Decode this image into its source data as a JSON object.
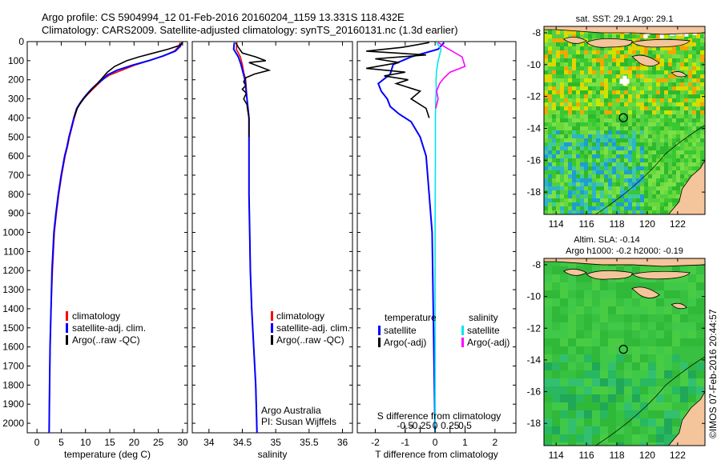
{
  "header": {
    "line1": "Argo profile: CS 5904994_12 01-Feb-2016 20160204_1159 13.331S 118.432E",
    "line2": "Climatology: CARS2009. Satellite-adjusted climatology: synTS_20160131.nc (1.3d earlier)"
  },
  "colors": {
    "climatology": "#ff0000",
    "satellite": "#0000ff",
    "argo": "#000000",
    "sat_salinity": "#00e5ee",
    "argo_salinity_adj": "#ff00ff"
  },
  "chart_data": [
    {
      "type": "line",
      "name": "temperature-profile",
      "xlabel": "temperature (deg C)",
      "xlim": [
        -2,
        31
      ],
      "ylim": [
        0,
        2050
      ],
      "y_inverted": true,
      "xticks": [
        0,
        5,
        10,
        15,
        20,
        25,
        30
      ],
      "xticklabels": [
        "0",
        "5",
        "10",
        "15",
        "20",
        "25",
        "30"
      ],
      "yticks": [
        0,
        100,
        200,
        300,
        400,
        500,
        600,
        700,
        800,
        900,
        1000,
        1100,
        1200,
        1300,
        1400,
        1500,
        1600,
        1700,
        1800,
        1900,
        2000
      ],
      "yticklabels": [
        "0",
        "100",
        "200",
        "300",
        "400",
        "500",
        "600",
        "700",
        "800",
        "900",
        "1000",
        "1100",
        "1200",
        "1300",
        "1400",
        "1500",
        "1600",
        "1700",
        "1800",
        "1900",
        "2000"
      ],
      "legend": [
        "climatology",
        "satellite-adj. clim.",
        "Argo(..raw -QC)"
      ],
      "series": [
        {
          "name": "climatology",
          "color": "#ff0000",
          "x": [
            29.5,
            29.2,
            28.3,
            26,
            23,
            20,
            17.5,
            15,
            13.5,
            12.5,
            11.5,
            10.5,
            9.6,
            8.9,
            8.3,
            7.7,
            7.2,
            6.7,
            6.3,
            5.8,
            5.1,
            4.5,
            4.0,
            3.6,
            3.2,
            2.9,
            2.7,
            2.6,
            2.5
          ],
          "y": [
            5,
            25,
            50,
            75,
            100,
            125,
            150,
            175,
            200,
            225,
            250,
            275,
            300,
            325,
            350,
            400,
            450,
            500,
            550,
            600,
            700,
            800,
            900,
            1000,
            1200,
            1400,
            1600,
            1800,
            2050
          ]
        },
        {
          "name": "satellite-adj. clim.",
          "color": "#0000ff",
          "x": [
            29.9,
            29.5,
            28.5,
            26,
            23,
            19.5,
            16.5,
            14.5,
            13.5,
            12.2,
            11.2,
            10.3,
            9.5,
            8.8,
            8.2,
            7.6,
            7.1,
            6.6,
            6.2,
            5.7,
            5.0,
            4.4,
            3.9,
            3.5,
            3.1,
            2.9,
            2.7,
            2.6,
            2.5
          ],
          "y": [
            5,
            25,
            50,
            75,
            100,
            125,
            150,
            175,
            200,
            225,
            250,
            275,
            300,
            325,
            350,
            400,
            450,
            500,
            550,
            600,
            700,
            800,
            900,
            1000,
            1200,
            1400,
            1600,
            1800,
            2050
          ]
        },
        {
          "name": "Argo(..raw -QC)",
          "color": "#000000",
          "x": [
            30,
            29.4,
            27,
            24,
            21,
            18.5,
            16,
            14.5,
            13.5,
            12.4,
            11.3,
            10.4,
            9.6,
            8.9,
            8.3,
            7.6
          ],
          "y": [
            5,
            20,
            40,
            60,
            80,
            100,
            130,
            160,
            190,
            220,
            250,
            275,
            300,
            325,
            350,
            400
          ]
        }
      ]
    },
    {
      "type": "line",
      "name": "salinity-profile",
      "xlabel": "salinity",
      "xlim": [
        33.75,
        36.15
      ],
      "ylim": [
        0,
        2050
      ],
      "y_inverted": true,
      "xticks": [
        34,
        34.5,
        35,
        35.5,
        36
      ],
      "xticklabels": [
        "34",
        "34.5",
        "35",
        "35.5",
        "36"
      ],
      "legend": [
        "climatology",
        "satellite-adj. clim.",
        "Argo(..raw -QC)"
      ],
      "annotation": [
        "Argo Australia",
        "PI: Susan Wijffels"
      ],
      "series": [
        {
          "name": "climatology",
          "color": "#ff0000",
          "x": [
            34.42,
            34.41,
            34.47,
            34.5,
            34.52,
            34.55,
            34.57,
            34.6,
            34.6,
            34.6,
            34.6,
            34.61,
            34.62,
            34.64,
            34.67,
            34.7,
            34.72
          ],
          "y": [
            5,
            40,
            80,
            120,
            160,
            200,
            300,
            400,
            500,
            600,
            800,
            1000,
            1200,
            1400,
            1600,
            1800,
            2050
          ]
        },
        {
          "name": "satellite-adj. clim.",
          "color": "#0000ff",
          "x": [
            34.38,
            34.37,
            34.44,
            34.48,
            34.51,
            34.54,
            34.57,
            34.6,
            34.6,
            34.6,
            34.6,
            34.61,
            34.62,
            34.64,
            34.67,
            34.7,
            34.72
          ],
          "y": [
            5,
            40,
            80,
            120,
            160,
            200,
            300,
            400,
            500,
            600,
            800,
            1000,
            1200,
            1400,
            1600,
            1800,
            2050
          ]
        },
        {
          "name": "Argo(..raw -QC)",
          "color": "#000000",
          "x": [
            34.4,
            34.44,
            34.5,
            34.7,
            34.85,
            34.6,
            34.9,
            34.68,
            34.55,
            34.52,
            34.55,
            34.5,
            34.56,
            34.52,
            34.57,
            34.58,
            34.6,
            34.6,
            34.6
          ],
          "y": [
            5,
            30,
            60,
            80,
            100,
            110,
            150,
            170,
            190,
            210,
            230,
            250,
            270,
            300,
            330,
            360,
            400,
            450,
            500
          ]
        }
      ]
    },
    {
      "type": "line",
      "name": "difference-profile",
      "xlabel": "T difference from climatology",
      "top_axis_label": "S difference from climatology",
      "xlim": [
        -2.6,
        2.7
      ],
      "ylim": [
        0,
        2050
      ],
      "y_inverted": true,
      "xticks": [
        -2,
        -1,
        0,
        1,
        2
      ],
      "xticklabels": [
        "-2",
        "-1",
        "0",
        "1",
        "2"
      ],
      "sticks": [
        -0.5,
        -0.25,
        0,
        0.25,
        0.5
      ],
      "sticklabels": [
        "-0.5",
        "-0.25",
        "0",
        "0.25",
        "0.5"
      ],
      "legend_headers": [
        "temperature",
        "salinity"
      ],
      "legend": [
        "satellite",
        "Argo(-adj)",
        "satellite",
        "Argo(-adj)"
      ],
      "series": [
        {
          "name": "T satellite",
          "color": "#0000ff",
          "x": [
            0.3,
            0.1,
            -0.8,
            -1.4,
            -1.5,
            -1.9,
            -1.8,
            -1.6,
            -1.5,
            -1.2,
            -0.8,
            -0.5,
            -0.3,
            -0.2,
            -0.1,
            0
          ],
          "y": [
            5,
            40,
            80,
            120,
            170,
            220,
            260,
            300,
            340,
            380,
            420,
            500,
            600,
            800,
            1000,
            2050
          ]
        },
        {
          "name": "T Argo(-adj)",
          "color": "#000000",
          "x": [
            -0.2,
            -1.1,
            -2.3,
            -0.3,
            -2.0,
            -1.2,
            -2.3,
            -1.0,
            -1.7,
            -0.9,
            -1.3,
            -0.5,
            -0.8,
            -0.3,
            -0.2
          ],
          "y": [
            5,
            30,
            50,
            70,
            90,
            110,
            140,
            160,
            180,
            200,
            220,
            260,
            300,
            350,
            400
          ]
        },
        {
          "name": "S satellite",
          "color": "#00e5ee",
          "x": [
            0.05,
            0.2,
            0.1,
            0.05,
            0.03,
            0.04,
            0.02,
            0.01,
            0.01,
            0,
            0
          ],
          "y": [
            5,
            40,
            100,
            150,
            200,
            250,
            300,
            400,
            600,
            1000,
            2050
          ]
        },
        {
          "name": "S Argo(-adj)",
          "color": "#ff00ff",
          "x": [
            0.1,
            0.35,
            0.9,
            1.0,
            0.5,
            0.3,
            0.15,
            0.05,
            0.1,
            0.02
          ],
          "y": [
            5,
            30,
            80,
            130,
            160,
            190,
            220,
            260,
            300,
            350
          ]
        }
      ]
    },
    {
      "type": "heatmap",
      "name": "sst-map",
      "title": "sat. SST: 29.1 Argo: 29.1",
      "xlim": [
        113.2,
        123.8
      ],
      "ylim": [
        -19.4,
        -7.6
      ],
      "xticks": [
        114,
        116,
        118,
        120,
        122
      ],
      "xticklabels": [
        "114",
        "116",
        "118",
        "120",
        "122"
      ],
      "yticks": [
        -8,
        -10,
        -12,
        -14,
        -16,
        -18
      ],
      "yticklabels": [
        "-8",
        "-10",
        "-12",
        "-14",
        "-16",
        "-18"
      ],
      "marker": {
        "lon": 118.43,
        "lat": -13.33
      }
    },
    {
      "type": "heatmap",
      "name": "sla-map",
      "title": [
        "Altim. SLA: -0.14",
        "Argo h1000: -0.2 h2000: -0.19"
      ],
      "xlim": [
        113.2,
        123.8
      ],
      "ylim": [
        -19.4,
        -7.6
      ],
      "xticks": [
        114,
        116,
        118,
        120,
        122
      ],
      "xticklabels": [
        "114",
        "116",
        "118",
        "120",
        "122"
      ],
      "yticks": [
        -8,
        -10,
        -12,
        -14,
        -16,
        -18
      ],
      "yticklabels": [
        "-8",
        "-10",
        "-12",
        "-14",
        "-16",
        "-18"
      ],
      "marker": {
        "lon": 118.43,
        "lat": -13.33
      }
    }
  ],
  "credit": "©IMOS 07-Feb-2016 20:44:57"
}
